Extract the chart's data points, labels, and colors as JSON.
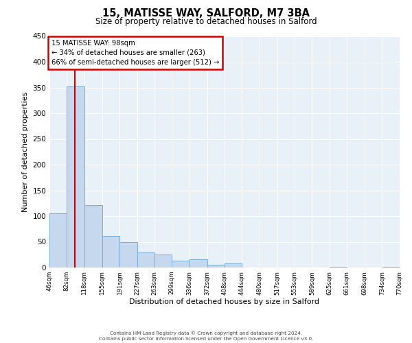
{
  "title": "15, MATISSE WAY, SALFORD, M7 3BA",
  "subtitle": "Size of property relative to detached houses in Salford",
  "xlabel": "Distribution of detached houses by size in Salford",
  "ylabel": "Number of detached properties",
  "bar_edges": [
    46,
    82,
    118,
    155,
    191,
    227,
    263,
    299,
    336,
    372,
    408,
    444,
    480,
    517,
    553,
    589,
    625,
    661,
    698,
    734,
    770
  ],
  "bar_values": [
    105,
    352,
    121,
    62,
    49,
    30,
    26,
    13,
    16,
    6,
    8,
    0,
    0,
    0,
    0,
    0,
    2,
    0,
    0,
    2
  ],
  "bar_color": "#c5d8ed",
  "bar_edge_color": "#7aadd4",
  "property_line_x": 98,
  "vline_color": "#cc0000",
  "annotation_box_color": "#cc0000",
  "annotation_title": "15 MATISSE WAY: 98sqm",
  "annotation_line1": "← 34% of detached houses are smaller (263)",
  "annotation_line2": "66% of semi-detached houses are larger (512) →",
  "ylim": [
    0,
    450
  ],
  "yticks": [
    0,
    50,
    100,
    150,
    200,
    250,
    300,
    350,
    400,
    450
  ],
  "tick_labels": [
    "46sqm",
    "82sqm",
    "118sqm",
    "155sqm",
    "191sqm",
    "227sqm",
    "263sqm",
    "299sqm",
    "336sqm",
    "372sqm",
    "408sqm",
    "444sqm",
    "480sqm",
    "517sqm",
    "553sqm",
    "589sqm",
    "625sqm",
    "661sqm",
    "698sqm",
    "734sqm",
    "770sqm"
  ],
  "footer1": "Contains HM Land Registry data © Crown copyright and database right 2024.",
  "footer2": "Contains public sector information licensed under the Open Government Licence v3.0.",
  "background_color": "#ffffff",
  "plot_bg_color": "#e8f0f8",
  "grid_color": "#ffffff"
}
